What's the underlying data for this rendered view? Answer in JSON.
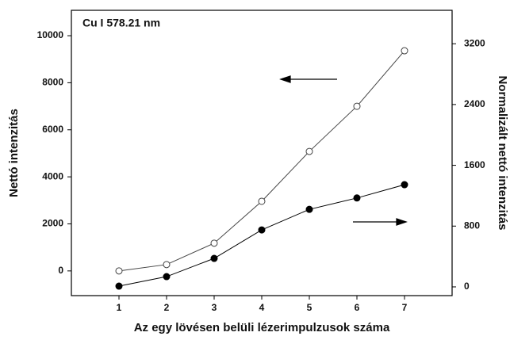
{
  "chart_data": {
    "type": "line",
    "annotation": "Cu I 578.21 nm",
    "x_label": "Az egy lövésen belüli lézerimpulzusok száma",
    "y_label": "Nettó intenzitás",
    "y2_label": "Normalizált nettó intenzitás",
    "x": [
      1,
      2,
      3,
      4,
      5,
      6,
      7
    ],
    "xlim": [
      0,
      8
    ],
    "xticks": [
      1,
      2,
      3,
      4,
      5,
      6,
      7
    ],
    "ylim": [
      -1050,
      11080
    ],
    "yticks": [
      0,
      2000,
      4000,
      6000,
      8000,
      10000
    ],
    "y2lim": [
      -115,
      3640
    ],
    "y2ticks": [
      0,
      800,
      1600,
      2400,
      3200
    ],
    "series": [
      {
        "color": "#444444",
        "marker": "open",
        "values": [
          0,
          270,
          1180,
          2960,
          5080,
          7000,
          9360
        ]
      },
      {
        "color": "#000000",
        "marker": "filled",
        "axis": "y2",
        "values": [
          10,
          135,
          375,
          750,
          1020,
          1170,
          1345
        ]
      }
    ]
  }
}
